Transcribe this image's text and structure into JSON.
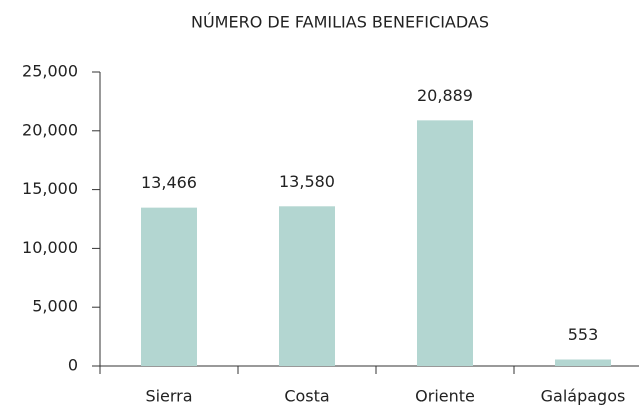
{
  "chart_data": {
    "type": "bar",
    "title": "NÚMERO DE FAMILIAS BENEFICIADAS",
    "categories": [
      "Sierra",
      "Costa",
      "Oriente",
      "Galápagos"
    ],
    "values": [
      13466,
      13580,
      20889,
      553
    ],
    "value_labels": [
      "13,466",
      "13,580",
      "20,889",
      "553"
    ],
    "color": "#b3d6d1",
    "ylim": [
      0,
      25000
    ],
    "yticks": [
      0,
      {
        "value": 5000,
        "label": "5,000"
      },
      {
        "value": 10000,
        "label": "10,000"
      },
      {
        "value": 15000,
        "label": "15,000"
      },
      {
        "value": 20000,
        "label": "20,000"
      },
      {
        "value": 25000,
        "label": "25,000"
      }
    ],
    "grid": false
  }
}
